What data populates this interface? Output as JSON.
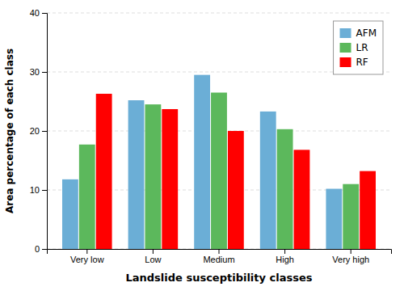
{
  "chart_data": {
    "type": "bar",
    "categories": [
      "Very low",
      "Low",
      "Medium",
      "High",
      "Very high"
    ],
    "series": [
      {
        "name": "AFM",
        "color": "#6BAED6",
        "values": [
          11.8,
          25.2,
          29.5,
          23.3,
          10.2
        ]
      },
      {
        "name": "LR",
        "color": "#5CB85C",
        "values": [
          17.7,
          24.5,
          26.5,
          20.3,
          11.0
        ]
      },
      {
        "name": "RF",
        "color": "#FF0000",
        "values": [
          26.3,
          23.7,
          20.0,
          16.8,
          13.2
        ]
      }
    ],
    "xlabel": "Landslide susceptibility classes",
    "ylabel": "Area percentage of each class",
    "ylim": [
      0,
      40
    ],
    "yticks": [
      0,
      10,
      20,
      30,
      40
    ],
    "grid": true,
    "legend": "upper-right"
  }
}
